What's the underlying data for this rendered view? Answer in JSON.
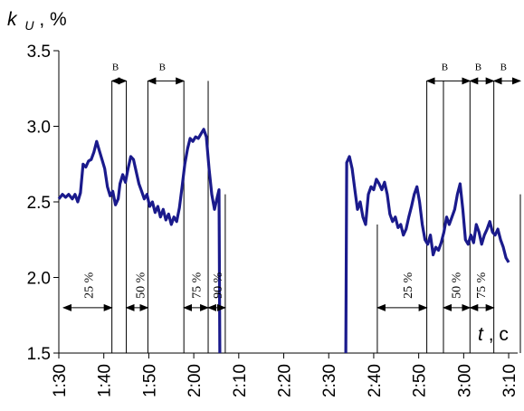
{
  "chart_data": {
    "type": "line",
    "title": "",
    "ylabel_symbol": "k",
    "ylabel_subscript": "U",
    "ylabel_unit": ", %",
    "xlabel_symbol": "t",
    "xlabel_unit": ", c",
    "xlim": [
      90,
      192
    ],
    "ylim": [
      1.5,
      3.5
    ],
    "x_ticks": [
      {
        "v": 90,
        "label": "1:30"
      },
      {
        "v": 100,
        "label": "1:40"
      },
      {
        "v": 110,
        "label": "1:50"
      },
      {
        "v": 120,
        "label": "2:00"
      },
      {
        "v": 130,
        "label": "2:10"
      },
      {
        "v": 140,
        "label": "2:20"
      },
      {
        "v": 150,
        "label": "2:30"
      },
      {
        "v": 160,
        "label": "2:40"
      },
      {
        "v": 170,
        "label": "2:50"
      },
      {
        "v": 180,
        "label": "3:00"
      },
      {
        "v": 190,
        "label": "3:10"
      }
    ],
    "y_ticks": [
      {
        "v": 3.5,
        "label": "3.5"
      },
      {
        "v": 3.0,
        "label": "3.0"
      },
      {
        "v": 2.5,
        "label": "2.5"
      },
      {
        "v": 2.0,
        "label": "2.0"
      },
      {
        "v": 1.5,
        "label": "1.5"
      }
    ],
    "series": [
      {
        "color": "#1a1a8c",
        "segments": [
          [
            [
              90,
              2.52
            ],
            [
              90.8,
              2.55
            ],
            [
              91.5,
              2.53
            ],
            [
              92.2,
              2.55
            ],
            [
              93,
              2.52
            ],
            [
              93.6,
              2.55
            ],
            [
              94.2,
              2.5
            ],
            [
              94.8,
              2.56
            ],
            [
              95.4,
              2.75
            ],
            [
              96,
              2.73
            ],
            [
              96.6,
              2.77
            ],
            [
              97.2,
              2.78
            ],
            [
              97.8,
              2.83
            ],
            [
              98.4,
              2.9
            ],
            [
              99,
              2.84
            ],
            [
              99.6,
              2.78
            ],
            [
              100.2,
              2.72
            ],
            [
              100.8,
              2.6
            ],
            [
              101.4,
              2.54
            ],
            [
              102,
              2.57
            ],
            [
              102.6,
              2.48
            ],
            [
              103.2,
              2.52
            ],
            [
              103.6,
              2.62
            ],
            [
              104.2,
              2.68
            ],
            [
              104.8,
              2.63
            ],
            [
              105.4,
              2.72
            ],
            [
              106,
              2.8
            ],
            [
              106.6,
              2.78
            ],
            [
              107.2,
              2.7
            ],
            [
              107.8,
              2.62
            ],
            [
              108.4,
              2.57
            ],
            [
              109,
              2.52
            ],
            [
              109.6,
              2.55
            ],
            [
              110.2,
              2.47
            ],
            [
              110.8,
              2.5
            ],
            [
              111.4,
              2.43
            ],
            [
              112,
              2.47
            ],
            [
              112.6,
              2.4
            ],
            [
              113.2,
              2.45
            ],
            [
              113.8,
              2.38
            ],
            [
              114.4,
              2.42
            ],
            [
              115,
              2.35
            ],
            [
              115.6,
              2.4
            ],
            [
              116.2,
              2.37
            ],
            [
              116.8,
              2.46
            ],
            [
              117.4,
              2.6
            ],
            [
              118,
              2.75
            ],
            [
              118.6,
              2.85
            ],
            [
              119.2,
              2.92
            ],
            [
              119.8,
              2.9
            ],
            [
              120.4,
              2.93
            ],
            [
              121,
              2.92
            ],
            [
              121.6,
              2.95
            ],
            [
              122.2,
              2.98
            ],
            [
              122.8,
              2.93
            ],
            [
              123.4,
              2.72
            ],
            [
              124,
              2.55
            ],
            [
              124.6,
              2.45
            ],
            [
              125.2,
              2.53
            ],
            [
              125.6,
              2.58
            ],
            [
              125.8,
              1.5
            ]
          ],
          [
            [
              153.8,
              1.5
            ],
            [
              154,
              2.76
            ],
            [
              154.6,
              2.8
            ],
            [
              155.2,
              2.72
            ],
            [
              155.8,
              2.58
            ],
            [
              156.4,
              2.45
            ],
            [
              157,
              2.5
            ],
            [
              157.6,
              2.4
            ],
            [
              158.2,
              2.35
            ],
            [
              158.8,
              2.55
            ],
            [
              159.4,
              2.6
            ],
            [
              160,
              2.58
            ],
            [
              160.6,
              2.65
            ],
            [
              161.2,
              2.62
            ],
            [
              161.8,
              2.58
            ],
            [
              162.4,
              2.63
            ],
            [
              163,
              2.55
            ],
            [
              163.6,
              2.42
            ],
            [
              164.2,
              2.37
            ],
            [
              164.8,
              2.4
            ],
            [
              165.4,
              2.33
            ],
            [
              166,
              2.35
            ],
            [
              166.6,
              2.28
            ],
            [
              167.2,
              2.32
            ],
            [
              167.8,
              2.4
            ],
            [
              168.4,
              2.47
            ],
            [
              169,
              2.55
            ],
            [
              169.6,
              2.6
            ],
            [
              170.2,
              2.5
            ],
            [
              170.8,
              2.35
            ],
            [
              171.4,
              2.25
            ],
            [
              172,
              2.22
            ],
            [
              172.6,
              2.28
            ],
            [
              173.2,
              2.15
            ],
            [
              173.8,
              2.2
            ],
            [
              174.4,
              2.18
            ],
            [
              175,
              2.23
            ],
            [
              175.6,
              2.3
            ],
            [
              176.2,
              2.4
            ],
            [
              176.8,
              2.35
            ],
            [
              177.4,
              2.4
            ],
            [
              178,
              2.45
            ],
            [
              178.6,
              2.55
            ],
            [
              179.2,
              2.62
            ],
            [
              179.8,
              2.45
            ],
            [
              180.4,
              2.25
            ],
            [
              181,
              2.22
            ],
            [
              181.6,
              2.28
            ],
            [
              182.2,
              2.23
            ],
            [
              182.8,
              2.35
            ],
            [
              183.4,
              2.3
            ],
            [
              184,
              2.22
            ],
            [
              184.6,
              2.28
            ],
            [
              185.2,
              2.32
            ],
            [
              185.8,
              2.37
            ],
            [
              186.4,
              2.3
            ],
            [
              187,
              2.28
            ],
            [
              187.6,
              2.32
            ],
            [
              188.2,
              2.25
            ],
            [
              188.8,
              2.2
            ],
            [
              189.4,
              2.13
            ],
            [
              190,
              2.1
            ]
          ]
        ]
      }
    ],
    "vlines": [
      {
        "x": 101.8,
        "y_top": 3.3
      },
      {
        "x": 105,
        "y_top": 3.3
      },
      {
        "x": 109.8,
        "y_top": 3.3
      },
      {
        "x": 117.8,
        "y_top": 3.3
      },
      {
        "x": 123.2,
        "y_top": 3.3
      },
      {
        "x": 127,
        "y_top": 2.55
      },
      {
        "x": 160.8,
        "y_top": 2.35
      },
      {
        "x": 171.8,
        "y_top": 3.3
      },
      {
        "x": 175.5,
        "y_top": 3.3
      },
      {
        "x": 181.4,
        "y_top": 3.3
      },
      {
        "x": 186.7,
        "y_top": 3.3
      },
      {
        "x": 192.6,
        "y_top": 2.55
      }
    ],
    "top_arrows": [
      {
        "x1": 101.8,
        "x2": 105,
        "y": 3.3,
        "label": "B"
      },
      {
        "x1": 109.8,
        "x2": 117.8,
        "y": 3.3,
        "label": "B"
      },
      {
        "x1": 171.8,
        "x2": 181.4,
        "y": 3.3,
        "label": "B"
      },
      {
        "x1": 181.4,
        "x2": 186.7,
        "y": 3.3,
        "label": "B"
      },
      {
        "x1": 186.7,
        "x2": 192.6,
        "y": 3.3,
        "label": "B"
      }
    ],
    "bottom_arrows": [
      {
        "x1": 91,
        "x2": 101.8,
        "y": 1.8,
        "label": "25 %",
        "label_x": 96.5
      },
      {
        "x1": 105,
        "x2": 109.8,
        "y": 1.8,
        "label": "50 %",
        "label_x": 108
      },
      {
        "x1": 117.8,
        "x2": 123.2,
        "y": 1.8,
        "label": "75 %",
        "label_x": 120.5
      },
      {
        "x1": 123.2,
        "x2": 127,
        "y": 1.8,
        "label": "90 %",
        "label_x": 125.2
      },
      {
        "x1": 160.8,
        "x2": 171.8,
        "y": 1.8,
        "label": "25 %",
        "label_x": 167.5
      },
      {
        "x1": 175.5,
        "x2": 181.4,
        "y": 1.8,
        "label": "50 %",
        "label_x": 178.2
      },
      {
        "x1": 181.4,
        "x2": 186.7,
        "y": 1.8,
        "label": "75 %",
        "label_x": 183.8
      }
    ]
  }
}
